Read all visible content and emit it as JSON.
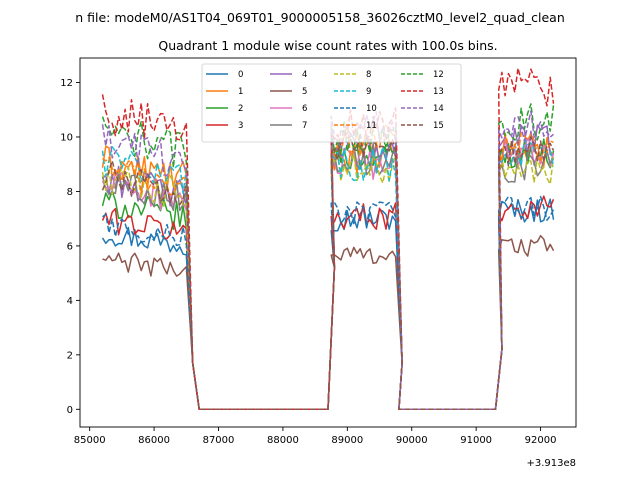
{
  "chart_data": {
    "type": "line",
    "suptitle": "n file: modeM0/AS1T04_069T01_9000005158_36026cztM0_level2_quad_clean",
    "title": "Quadrant 1 module wise count rates with 100.0s bins.",
    "xlabel": "",
    "ylabel": "",
    "x_offset_label": "+3.913e8",
    "xlim": [
      84850,
      92550
    ],
    "ylim": [
      -0.65,
      12.9
    ],
    "xticks": [
      85000,
      86000,
      87000,
      88000,
      89000,
      90000,
      91000,
      92000
    ],
    "xtick_labels": [
      "85000",
      "86000",
      "87000",
      "88000",
      "89000",
      "90000",
      "91000",
      "92000"
    ],
    "yticks": [
      0,
      2,
      4,
      6,
      8,
      10,
      12
    ],
    "ytick_labels": [
      "0",
      "2",
      "4",
      "6",
      "8",
      "10",
      "12"
    ],
    "segments": [
      {
        "start": 85200,
        "end": 86500
      },
      {
        "start": 88750,
        "end": 89750
      },
      {
        "start": 91350,
        "end": 92200
      }
    ],
    "zero_gaps": [
      [
        86700,
        88700
      ],
      [
        89800,
        91300
      ]
    ],
    "series": [
      {
        "name": "0",
        "color": "#1f77b4",
        "dash": "solid",
        "levels": [
          6.5,
          7.0,
          7.3
        ]
      },
      {
        "name": "1",
        "color": "#ff7f0e",
        "dash": "solid",
        "levels": [
          9.1,
          9.3,
          9.5
        ]
      },
      {
        "name": "2",
        "color": "#2ca02c",
        "dash": "solid",
        "levels": [
          7.6,
          9.3,
          9.4
        ]
      },
      {
        "name": "3",
        "color": "#d62728",
        "dash": "solid",
        "levels": [
          7.0,
          7.1,
          7.4
        ]
      },
      {
        "name": "4",
        "color": "#9467bd",
        "dash": "solid",
        "levels": [
          8.5,
          9.6,
          9.9
        ]
      },
      {
        "name": "5",
        "color": "#8c564b",
        "dash": "solid",
        "levels": [
          5.5,
          5.7,
          6.0
        ]
      },
      {
        "name": "6",
        "color": "#e377c2",
        "dash": "solid",
        "levels": [
          8.3,
          9.0,
          9.4
        ]
      },
      {
        "name": "7",
        "color": "#7f7f7f",
        "dash": "solid",
        "levels": [
          8.4,
          9.2,
          8.9
        ]
      },
      {
        "name": "8",
        "color": "#bcbd22",
        "dash": "dashed",
        "levels": [
          8.5,
          8.8,
          8.7
        ]
      },
      {
        "name": "9",
        "color": "#17becf",
        "dash": "dashed",
        "levels": [
          9.2,
          9.0,
          9.3
        ]
      },
      {
        "name": "10",
        "color": "#1f77b4",
        "dash": "dashed",
        "levels": [
          6.8,
          7.2,
          7.4
        ]
      },
      {
        "name": "11",
        "color": "#ff7f0e",
        "dash": "dashed",
        "levels": [
          8.8,
          9.9,
          9.6
        ]
      },
      {
        "name": "12",
        "color": "#2ca02c",
        "dash": "dashed",
        "levels": [
          10.2,
          10.0,
          10.6
        ]
      },
      {
        "name": "13",
        "color": "#d62728",
        "dash": "dashed",
        "levels": [
          10.9,
          10.4,
          11.8
        ]
      },
      {
        "name": "14",
        "color": "#9467bd",
        "dash": "dashed",
        "levels": [
          9.8,
          10.3,
          10.3
        ]
      },
      {
        "name": "15",
        "color": "#8c564b",
        "dash": "dashed",
        "levels": [
          8.6,
          9.7,
          9.4
        ]
      }
    ],
    "legend": {
      "location": "upper-center",
      "columns": 4
    }
  }
}
